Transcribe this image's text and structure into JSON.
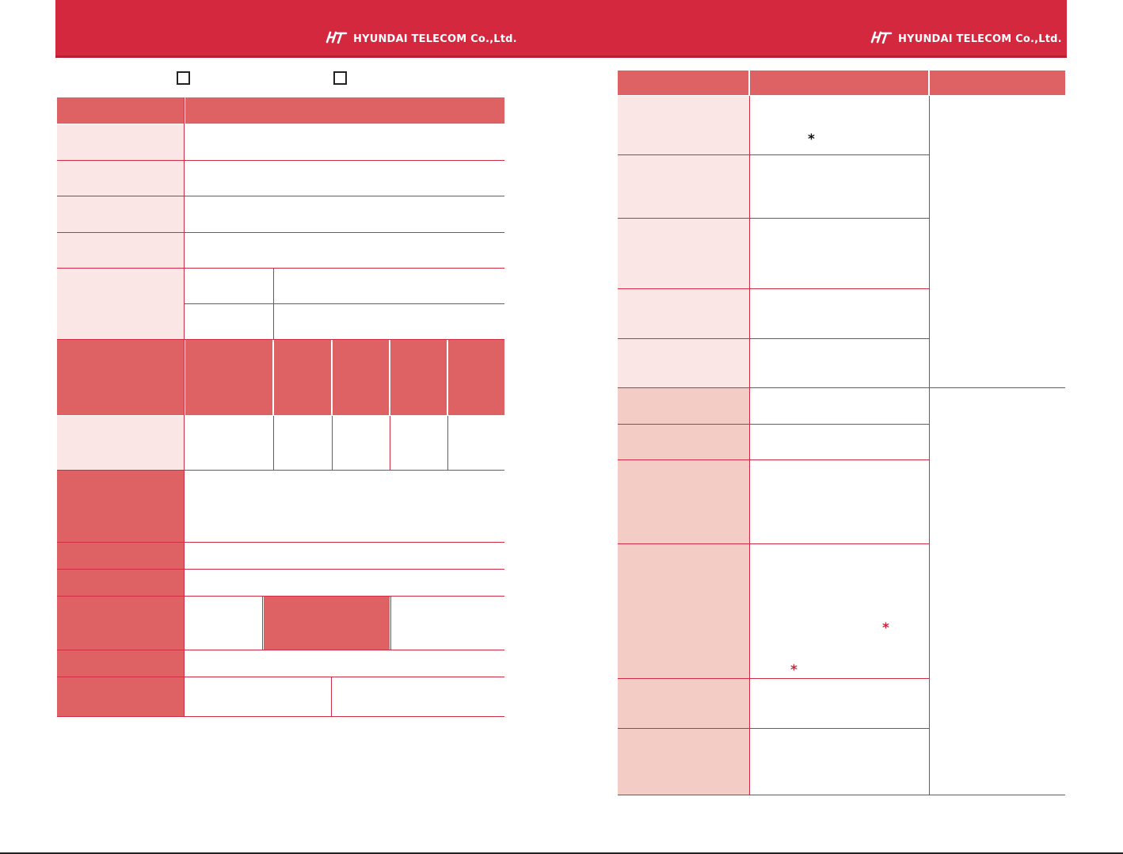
{
  "header": {
    "brand_text": "HYUNDAI TELECOM Co.,Ltd.",
    "logo_icon": "ht-logo-icon",
    "band_color": "#d4283f"
  },
  "colors": {
    "header_cell": "#de6164",
    "light_cell": "#f9e6e5",
    "medium_cell": "#f3ccc6",
    "rule": "#cf2d43"
  },
  "left_page": {
    "checkboxes": 2
  },
  "right_page": {
    "asterisks": [
      {
        "color": "#111111"
      },
      {
        "color": "#c8283c"
      },
      {
        "color": "#c8283c"
      }
    ]
  }
}
